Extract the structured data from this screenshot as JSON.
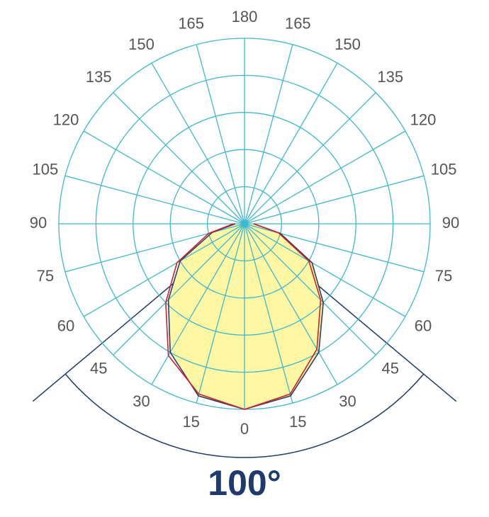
{
  "chart_data": {
    "type": "polar",
    "angles": [
      -90,
      -75,
      -60,
      -45,
      -30,
      -15,
      0,
      15,
      30,
      45,
      60,
      75,
      90
    ],
    "series": [
      {
        "color": "#2b3f6b",
        "values": [
          5,
          18,
          40,
          58,
          80,
          96,
          100,
          96,
          80,
          60,
          42,
          20,
          5
        ]
      },
      {
        "color": "#d0202a",
        "values": [
          6,
          20,
          42,
          60,
          82,
          95,
          100,
          95,
          78,
          58,
          40,
          19,
          5
        ]
      }
    ],
    "fill": "#fff7a3",
    "rlim": [
      0,
      100
    ],
    "rgrid": [
      20,
      40,
      60,
      80,
      100
    ],
    "grid_color": "#3fb8cf",
    "angle_ticks": [
      {
        "value": 0,
        "label": "0"
      },
      {
        "value": -15,
        "label": "15"
      },
      {
        "value": 15,
        "label": "15"
      },
      {
        "value": -30,
        "label": "30"
      },
      {
        "value": 30,
        "label": "30"
      },
      {
        "value": -45,
        "label": "45"
      },
      {
        "value": 45,
        "label": "45"
      },
      {
        "value": -60,
        "label": "60"
      },
      {
        "value": 60,
        "label": "60"
      },
      {
        "value": -75,
        "label": "75"
      },
      {
        "value": 75,
        "label": "75"
      },
      {
        "value": -90,
        "label": "90"
      },
      {
        "value": 90,
        "label": "90"
      },
      {
        "value": -105,
        "label": "105"
      },
      {
        "value": 105,
        "label": "105"
      },
      {
        "value": -120,
        "label": "120"
      },
      {
        "value": 120,
        "label": "120"
      },
      {
        "value": -135,
        "label": "135"
      },
      {
        "value": 135,
        "label": "135"
      },
      {
        "value": -150,
        "label": "150"
      },
      {
        "value": 150,
        "label": "150"
      },
      {
        "value": -165,
        "label": "165"
      },
      {
        "value": 165,
        "label": "165"
      },
      {
        "value": 180,
        "label": "180"
      }
    ],
    "beam_angle": {
      "value": 100,
      "label": "100°",
      "color": "#1f3a6e"
    }
  }
}
